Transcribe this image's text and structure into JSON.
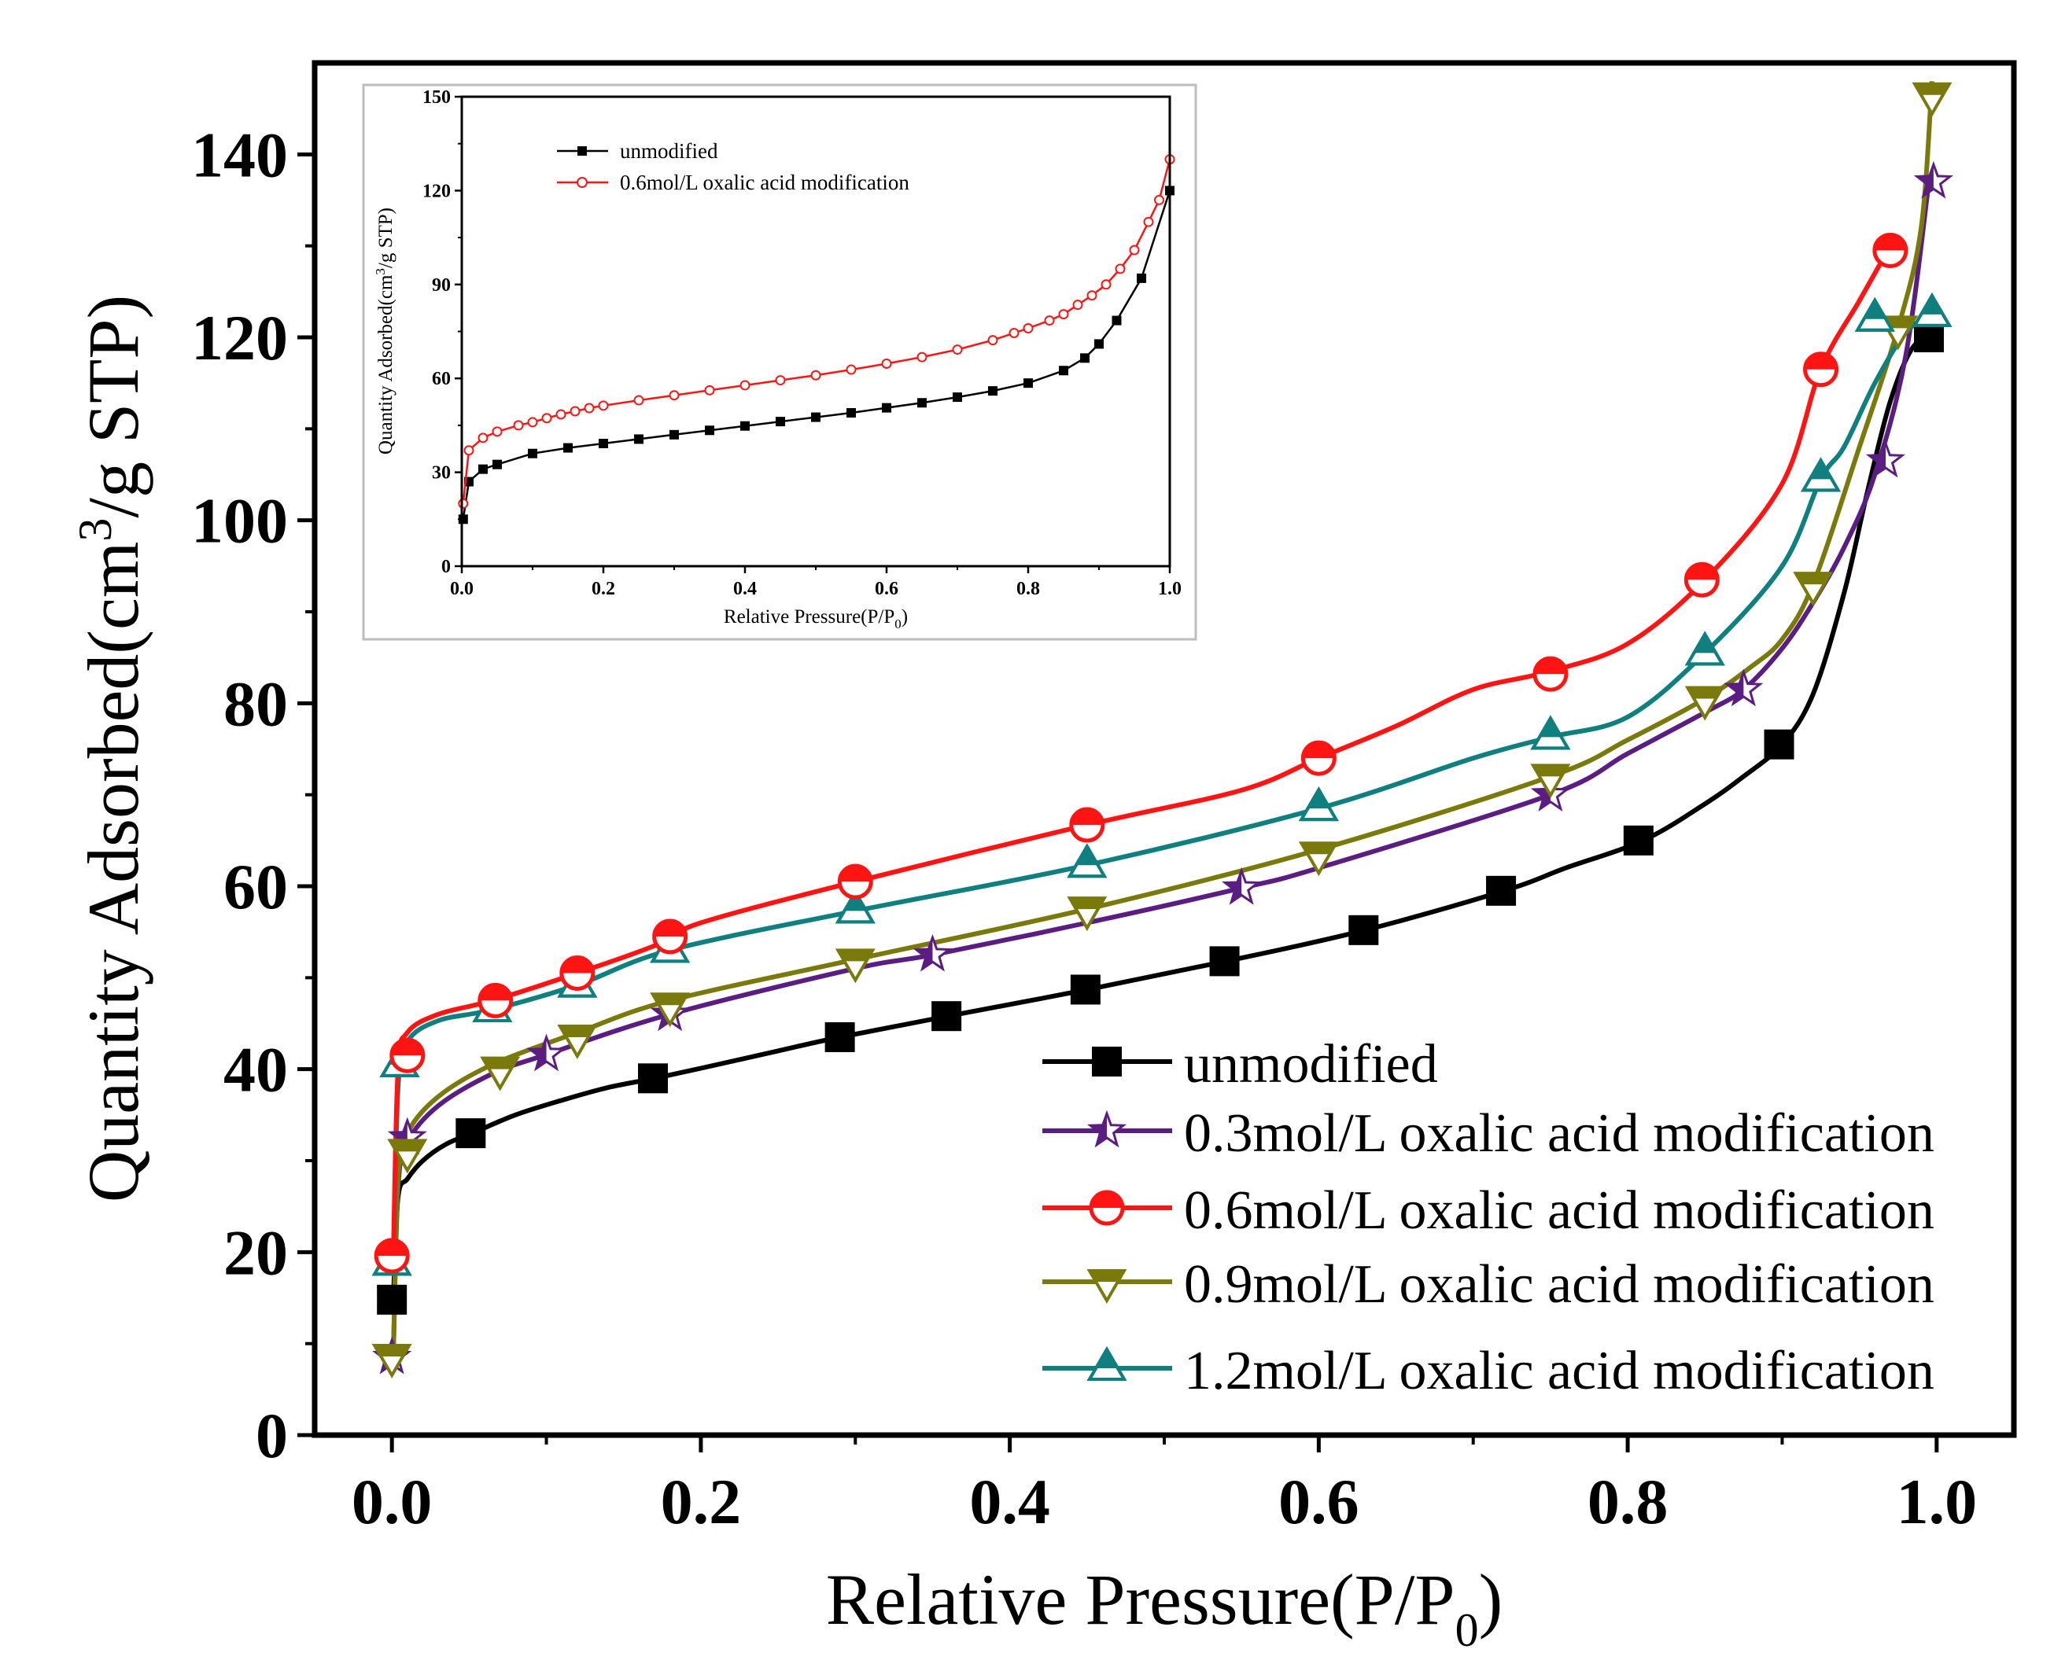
{
  "colors": {
    "unmodified": "#000000",
    "m03": "#5b1d82",
    "m06": "#ff1414",
    "m09": "#7a7a0c",
    "m12": "#0f7f7f",
    "inset_red": "#ff1414",
    "inset_black": "#000000",
    "axis": "#000000"
  },
  "chart_data": [
    {
      "id": "main",
      "type": "line",
      "title": "",
      "xlabel": "Relative Pressure(P/P",
      "xlabel_sub": "0",
      "xlabel_end": ")",
      "ylabel": "Quantity Adsorbed(cm",
      "ylabel_sup": "3",
      "ylabel_end": "/g STP)",
      "xlim": [
        -0.05,
        1.05
      ],
      "ylim": [
        0,
        150
      ],
      "xticks": [
        0.0,
        0.2,
        0.4,
        0.6,
        0.8,
        1.0
      ],
      "xtick_labels": [
        "0.0",
        "0.2",
        "0.4",
        "0.6",
        "0.8",
        "1.0"
      ],
      "yticks": [
        0,
        20,
        40,
        60,
        80,
        100,
        120,
        140
      ],
      "ytick_labels": [
        "0",
        "20",
        "40",
        "60",
        "80",
        "100",
        "120",
        "140"
      ],
      "legend_position": "lower-right",
      "series": [
        {
          "key": "unmodified",
          "name": "unmodified",
          "marker": "square",
          "line": [
            [
              0.001,
              15
            ],
            [
              0.004,
              26
            ],
            [
              0.01,
              28
            ],
            [
              0.02,
              30
            ],
            [
              0.035,
              31.8
            ],
            [
              0.052,
              33
            ],
            [
              0.08,
              35
            ],
            [
              0.11,
              36.6
            ],
            [
              0.14,
              38
            ],
            [
              0.17,
              39
            ],
            [
              0.2,
              40.1
            ],
            [
              0.25,
              42
            ],
            [
              0.29,
              43.5
            ],
            [
              0.36,
              45.8
            ],
            [
              0.45,
              48.7
            ],
            [
              0.54,
              51.8
            ],
            [
              0.63,
              55.2
            ],
            [
              0.72,
              59.5
            ],
            [
              0.76,
              62
            ],
            [
              0.81,
              65
            ],
            [
              0.85,
              69
            ],
            [
              0.875,
              72
            ],
            [
              0.9,
              75.5
            ],
            [
              0.92,
              81
            ],
            [
              0.94,
              92
            ],
            [
              0.955,
              103
            ],
            [
              0.97,
              113
            ],
            [
              0.985,
              119
            ],
            [
              1.0,
              120
            ]
          ],
          "marker_points": [
            [
              0.0,
              14.8
            ],
            [
              0.051,
              33
            ],
            [
              0.169,
              39
            ],
            [
              0.29,
              43.5
            ],
            [
              0.359,
              45.8
            ],
            [
              0.449,
              48.7
            ],
            [
              0.539,
              51.8
            ],
            [
              0.629,
              55.2
            ],
            [
              0.718,
              59.5
            ],
            [
              0.807,
              65
            ],
            [
              0.898,
              75.5
            ],
            [
              0.995,
              120
            ]
          ]
        },
        {
          "key": "m03",
          "name": "0.3mol/L oxalic acid modification",
          "marker": "star",
          "line": [
            [
              0.001,
              9
            ],
            [
              0.004,
              27
            ],
            [
              0.01,
              32
            ],
            [
              0.03,
              36
            ],
            [
              0.065,
              39.5
            ],
            [
              0.1,
              41.6
            ],
            [
              0.18,
              46
            ],
            [
              0.3,
              51
            ],
            [
              0.35,
              52.5
            ],
            [
              0.45,
              56
            ],
            [
              0.55,
              59.8
            ],
            [
              0.6,
              62
            ],
            [
              0.75,
              70
            ],
            [
              0.8,
              74.5
            ],
            [
              0.85,
              79
            ],
            [
              0.875,
              81.5
            ],
            [
              0.9,
              86
            ],
            [
              0.92,
              91
            ],
            [
              0.94,
              97
            ],
            [
              0.96,
              105
            ],
            [
              0.98,
              118
            ],
            [
              0.995,
              137
            ]
          ],
          "marker_points": [
            [
              0.0,
              8.5
            ],
            [
              0.01,
              32.5
            ],
            [
              0.1,
              41.6
            ],
            [
              0.18,
              46
            ],
            [
              0.35,
              52.5
            ],
            [
              0.55,
              59.8
            ],
            [
              0.75,
              70
            ],
            [
              0.875,
              81.5
            ],
            [
              0.967,
              106.5
            ],
            [
              0.998,
              137
            ]
          ]
        },
        {
          "key": "m06",
          "name": "0.6mol/L oxalic acid modification",
          "marker": "circle",
          "line": [
            [
              0.001,
              20
            ],
            [
              0.004,
              40
            ],
            [
              0.01,
              44
            ],
            [
              0.03,
              46
            ],
            [
              0.065,
              47.5
            ],
            [
              0.12,
              50.5
            ],
            [
              0.17,
              53.5
            ],
            [
              0.2,
              56
            ],
            [
              0.3,
              60.5
            ],
            [
              0.45,
              66.7
            ],
            [
              0.55,
              70.5
            ],
            [
              0.6,
              74
            ],
            [
              0.65,
              77.5
            ],
            [
              0.7,
              81.5
            ],
            [
              0.75,
              83.5
            ],
            [
              0.8,
              86.5
            ],
            [
              0.85,
              93.5
            ],
            [
              0.9,
              104
            ],
            [
              0.925,
              116.5
            ],
            [
              0.95,
              124
            ],
            [
              0.97,
              130
            ]
          ],
          "marker_points": [
            [
              0.0,
              19.6
            ],
            [
              0.01,
              41.5
            ],
            [
              0.067,
              47.5
            ],
            [
              0.12,
              50.5
            ],
            [
              0.18,
              54.5
            ],
            [
              0.3,
              60.5
            ],
            [
              0.45,
              66.7
            ],
            [
              0.6,
              74
            ],
            [
              0.75,
              83.2
            ],
            [
              0.848,
              93.5
            ],
            [
              0.925,
              116.5
            ],
            [
              0.97,
              129.5
            ]
          ]
        },
        {
          "key": "m09",
          "name": "0.9mol/L oxalic acid modification",
          "marker": "triangle-down",
          "line": [
            [
              0.001,
              9
            ],
            [
              0.004,
              28
            ],
            [
              0.01,
              33
            ],
            [
              0.03,
              37
            ],
            [
              0.065,
              40.5
            ],
            [
              0.12,
              44
            ],
            [
              0.18,
              47.5
            ],
            [
              0.3,
              52
            ],
            [
              0.45,
              57.5
            ],
            [
              0.6,
              64
            ],
            [
              0.75,
              72
            ],
            [
              0.8,
              76
            ],
            [
              0.85,
              80.5
            ],
            [
              0.88,
              84
            ],
            [
              0.9,
              87
            ],
            [
              0.92,
              93
            ],
            [
              0.95,
              108
            ],
            [
              0.975,
              121
            ],
            [
              0.99,
              132
            ],
            [
              0.997,
              148
            ]
          ],
          "marker_points": [
            [
              0.0,
              8.6
            ],
            [
              0.01,
              31
            ],
            [
              0.07,
              40
            ],
            [
              0.12,
              43.5
            ],
            [
              0.18,
              47
            ],
            [
              0.3,
              51.8
            ],
            [
              0.45,
              57.5
            ],
            [
              0.6,
              63.5
            ],
            [
              0.75,
              72
            ],
            [
              0.85,
              80.5
            ],
            [
              0.92,
              93
            ],
            [
              0.975,
              121
            ],
            [
              0.997,
              146.5
            ]
          ]
        },
        {
          "key": "m12",
          "name": "1.2mol/L oxalic acid modification",
          "marker": "triangle-up",
          "line": [
            [
              0.001,
              19
            ],
            [
              0.004,
              38
            ],
            [
              0.01,
              43
            ],
            [
              0.03,
              45.3
            ],
            [
              0.065,
              46.5
            ],
            [
              0.12,
              49.2
            ],
            [
              0.18,
              53
            ],
            [
              0.3,
              57.3
            ],
            [
              0.45,
              62.3
            ],
            [
              0.6,
              68.5
            ],
            [
              0.7,
              74
            ],
            [
              0.75,
              76.3
            ],
            [
              0.8,
              78.5
            ],
            [
              0.85,
              85.5
            ],
            [
              0.9,
              95
            ],
            [
              0.925,
              104.5
            ],
            [
              0.94,
              108
            ],
            [
              0.96,
              115
            ],
            [
              0.98,
              120.5
            ],
            [
              0.997,
              122.5
            ]
          ],
          "marker_points": [
            [
              0.0,
              18.8
            ],
            [
              0.005,
              40.5
            ],
            [
              0.065,
              46.5
            ],
            [
              0.12,
              49.2
            ],
            [
              0.18,
              53
            ],
            [
              0.3,
              57.3
            ],
            [
              0.45,
              62.3
            ],
            [
              0.6,
              68.5
            ],
            [
              0.75,
              76.3
            ],
            [
              0.85,
              85.5
            ],
            [
              0.925,
              104.5
            ],
            [
              0.96,
              122
            ],
            [
              0.997,
              122.5
            ]
          ]
        }
      ]
    },
    {
      "id": "inset",
      "type": "line",
      "title": "",
      "xlabel": "Relative Pressure(P/P",
      "xlabel_sub": "0",
      "xlabel_end": ")",
      "ylabel": "Quantity Adsorbed(cm",
      "ylabel_sup": "3",
      "ylabel_end": "/g STP)",
      "xlim": [
        0,
        1.0
      ],
      "ylim": [
        0,
        150
      ],
      "xticks": [
        0.0,
        0.2,
        0.4,
        0.6,
        0.8,
        1.0
      ],
      "xtick_labels": [
        "0.0",
        "0.2",
        "0.4",
        "0.6",
        "0.8",
        "1.0"
      ],
      "yticks": [
        0,
        30,
        60,
        90,
        120,
        150
      ],
      "ytick_labels": [
        "0",
        "30",
        "60",
        "90",
        "120",
        "150"
      ],
      "legend_position": "top-left",
      "series": [
        {
          "key": "inset_black",
          "name": "unmodified",
          "marker": "square-filled",
          "points": [
            [
              0.002,
              15
            ],
            [
              0.01,
              27
            ],
            [
              0.03,
              31
            ],
            [
              0.05,
              32.5
            ],
            [
              0.1,
              36
            ],
            [
              0.15,
              37.8
            ],
            [
              0.2,
              39.2
            ],
            [
              0.25,
              40.6
            ],
            [
              0.3,
              42
            ],
            [
              0.35,
              43.4
            ],
            [
              0.4,
              44.8
            ],
            [
              0.45,
              46.2
            ],
            [
              0.5,
              47.6
            ],
            [
              0.55,
              49
            ],
            [
              0.6,
              50.6
            ],
            [
              0.65,
              52.2
            ],
            [
              0.7,
              54
            ],
            [
              0.75,
              56
            ],
            [
              0.8,
              58.5
            ],
            [
              0.85,
              62.5
            ],
            [
              0.88,
              66.5
            ],
            [
              0.9,
              71
            ],
            [
              0.925,
              78.5
            ],
            [
              0.96,
              92
            ],
            [
              1.0,
              120
            ]
          ]
        },
        {
          "key": "inset_red",
          "name": "0.6mol/L oxalic acid modification",
          "marker": "circle-open",
          "points": [
            [
              0.002,
              20
            ],
            [
              0.01,
              37
            ],
            [
              0.03,
              41
            ],
            [
              0.05,
              43
            ],
            [
              0.08,
              45
            ],
            [
              0.1,
              46
            ],
            [
              0.12,
              47.3
            ],
            [
              0.14,
              48.5
            ],
            [
              0.16,
              49.5
            ],
            [
              0.18,
              50.5
            ],
            [
              0.2,
              51.3
            ],
            [
              0.25,
              53
            ],
            [
              0.3,
              54.6
            ],
            [
              0.35,
              56.2
            ],
            [
              0.4,
              57.8
            ],
            [
              0.45,
              59.4
            ],
            [
              0.5,
              61
            ],
            [
              0.55,
              62.8
            ],
            [
              0.6,
              64.7
            ],
            [
              0.65,
              66.8
            ],
            [
              0.7,
              69.2
            ],
            [
              0.75,
              72.2
            ],
            [
              0.78,
              74.5
            ],
            [
              0.8,
              76
            ],
            [
              0.83,
              78.5
            ],
            [
              0.85,
              80.5
            ],
            [
              0.87,
              83.5
            ],
            [
              0.89,
              86.5
            ],
            [
              0.91,
              90
            ],
            [
              0.93,
              95
            ],
            [
              0.95,
              101
            ],
            [
              0.97,
              110
            ],
            [
              0.985,
              117
            ],
            [
              1.0,
              130
            ]
          ]
        }
      ]
    }
  ]
}
